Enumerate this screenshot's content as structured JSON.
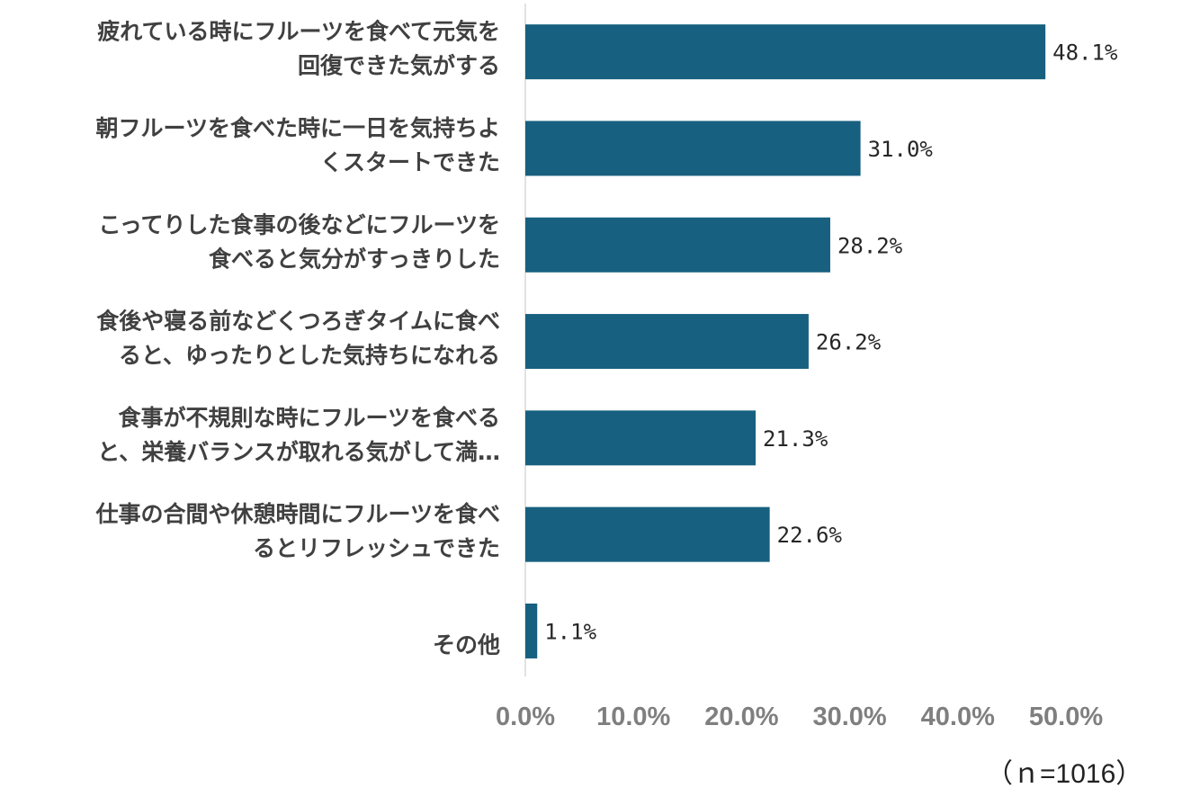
{
  "chart_data": {
    "type": "bar",
    "orientation": "horizontal",
    "categories": [
      [
        "疲れている時にフルーツを食べて元気を",
        "回復できた気がする"
      ],
      [
        "朝フルーツを食べた時に一日を気持ちよ",
        "くスタートできた"
      ],
      [
        "こってりした食事の後などにフルーツを",
        "食べると気分がすっきりした"
      ],
      [
        "食後や寝る前などくつろぎタイムに食べ",
        "ると、ゆったりとした気持ちになれる"
      ],
      [
        "食事が不規則な時にフルーツを食べる",
        "と、栄養バランスが取れる気がして満…"
      ],
      [
        "仕事の合間や休憩時間にフルーツを食べ",
        "るとリフレッシュできた"
      ],
      [
        "",
        "その他"
      ]
    ],
    "values": [
      48.1,
      31.0,
      28.2,
      26.2,
      21.3,
      22.6,
      1.1
    ],
    "data_labels": [
      "48.1%",
      "31.0%",
      "28.2%",
      "26.2%",
      "21.3%",
      "22.6%",
      "1.1%"
    ],
    "x_ticks": [
      "0.0%",
      "10.0%",
      "20.0%",
      "30.0%",
      "40.0%",
      "50.0%"
    ],
    "xlim": [
      0,
      50
    ],
    "bar_color": "#17607f",
    "grid": false,
    "note": "（ｎ=1016）"
  }
}
